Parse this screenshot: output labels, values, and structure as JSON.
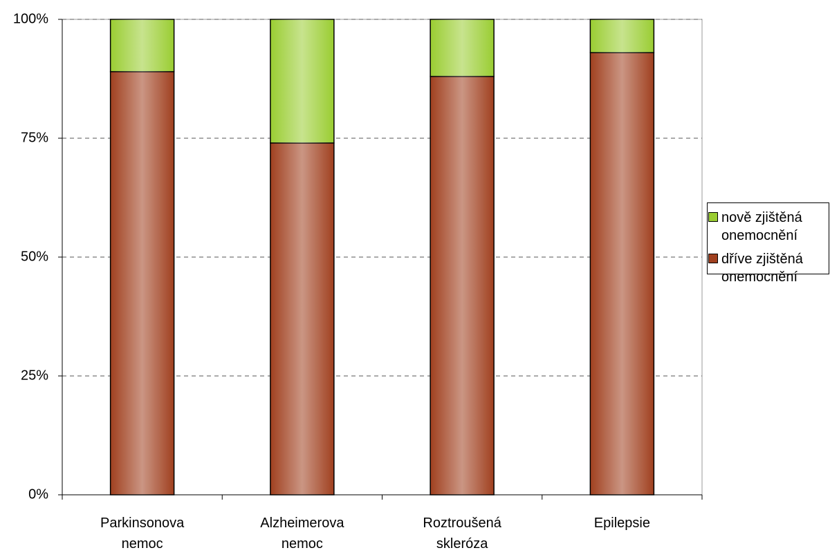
{
  "chart_data": {
    "type": "stacked_bar_100",
    "categories": [
      "Parkinsonova nemoc",
      "Alzheimerova nemoc",
      "Roztroušená skleróza",
      "Epilepsie"
    ],
    "series": [
      {
        "name": "dříve zjištěná onemocnění",
        "color": "#a0401f",
        "values": [
          89,
          74,
          88,
          93
        ]
      },
      {
        "name": "nově zjištěná onemocnění",
        "color": "#9acd32",
        "values": [
          11,
          26,
          12,
          7
        ]
      }
    ],
    "ylim": [
      0,
      100
    ],
    "yticks": [
      {
        "value": 0,
        "label": "0%"
      },
      {
        "value": 25,
        "label": "25%"
      },
      {
        "value": 50,
        "label": "50%"
      },
      {
        "value": 75,
        "label": "75%"
      },
      {
        "value": 100,
        "label": "100%"
      }
    ],
    "grid": true,
    "legend": "right"
  }
}
